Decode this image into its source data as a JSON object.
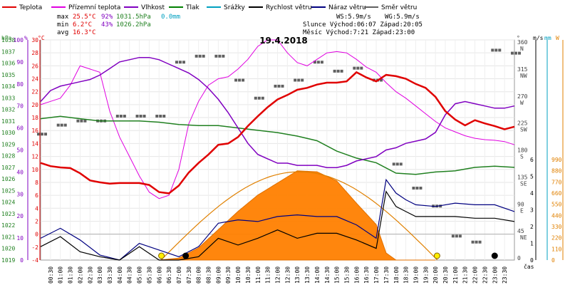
{
  "chart_data": {
    "type": "line",
    "title": "19.4.2018",
    "legend": [
      {
        "name": "Teplota",
        "color": "#e00000"
      },
      {
        "name": "Přízemní teplota",
        "color": "#e000e0"
      },
      {
        "name": "Vlhkost",
        "color": "#8000c0"
      },
      {
        "name": "Tlak",
        "color": "#008000"
      },
      {
        "name": "Srážky",
        "color": "#00a0c0"
      },
      {
        "name": "Rychlost větru",
        "color": "#000000"
      },
      {
        "name": "Náraz větru",
        "color": "#000080"
      },
      {
        "name": "Směr větru",
        "color": "#606060"
      }
    ],
    "stats": {
      "max": {
        "label": "max",
        "temp": "25.5°C",
        "hum": "92%",
        "press": "1031.5hPa",
        "rain": "0.0mm"
      },
      "min": {
        "label": "min",
        "temp": "6.2°C",
        "hum": "43%",
        "press": "1026.2hPa"
      },
      "avg": {
        "label": "avg",
        "temp": "16.3°C"
      },
      "ws": "WS:5.9m/s",
      "wg": "WG:5.9m/s",
      "sun": "Slunce Východ:06:07  Západ:20:05",
      "moon": "Měsíc  Východ:7:21  Západ:23:00"
    },
    "axis_units": {
      "hpa": "hPa",
      "pct": "%",
      "degc": "°C",
      "deg": "°",
      "ms": "m/s",
      "mm": "mm",
      "w": "W",
      "cas": "čas"
    },
    "y_ticks": {
      "hpa": [
        "1038",
        "1037",
        "1036",
        "1035",
        "1034",
        "1033",
        "1032",
        "1031",
        "1030",
        "1029",
        "1028",
        "1027",
        "1026",
        "1025",
        "1024",
        "1023",
        "1022",
        "1021",
        "1020",
        "1019"
      ],
      "pct": [
        "100",
        "90",
        "80",
        "70",
        "60",
        "50",
        "40",
        "30",
        "20",
        "10",
        "0"
      ],
      "temp": [
        "30",
        "28",
        "26",
        "24",
        "22",
        "20",
        "18",
        "16",
        "14",
        "12",
        "10",
        "8",
        "6",
        "4",
        "2",
        "0",
        "-2",
        "-4"
      ],
      "dir": [
        "360 N",
        "315 NW",
        "270 W",
        "225 SW",
        "180 S",
        "135 SE",
        "90 E",
        "45 NE",
        "0"
      ],
      "ms": [
        "6",
        "5",
        "4",
        "3",
        "2",
        "1",
        "0"
      ],
      "w": [
        "990",
        "880",
        "770",
        "660",
        "550",
        "440",
        "330",
        "220",
        "110",
        "0"
      ]
    },
    "x_ticks": [
      "00:30",
      "01:00",
      "01:30",
      "02:00",
      "02:30",
      "03:00",
      "03:30",
      "04:00",
      "04:30",
      "05:00",
      "05:30",
      "06:00",
      "06:30",
      "07:00",
      "07:30",
      "08:00",
      "08:30",
      "09:00",
      "09:30",
      "10:00",
      "10:30",
      "11:00",
      "11:30",
      "12:00",
      "12:30",
      "13:00",
      "13:30",
      "14:00",
      "14:30",
      "15:00",
      "15:30",
      "16:00",
      "16:30",
      "17:00",
      "17:30",
      "18:00",
      "18:30",
      "19:00",
      "19:30",
      "20:00",
      "20:30",
      "21:00",
      "21:30",
      "22:00",
      "22:30",
      "23:00",
      "23:30"
    ],
    "series": [
      {
        "name": "Teplota",
        "x": [
          0,
          0.5,
          1,
          1.5,
          2,
          2.5,
          3,
          3.5,
          4,
          4.5,
          5,
          5.5,
          6,
          6.5,
          7,
          7.5,
          8,
          8.5,
          9,
          9.5,
          10,
          10.5,
          11,
          11.5,
          12,
          12.5,
          13,
          13.5,
          14,
          14.5,
          15,
          15.5,
          16,
          16.5,
          17,
          17.5,
          18,
          18.5,
          19,
          19.5,
          20,
          20.5,
          21,
          21.5,
          22,
          22.5,
          23,
          23.5,
          24
        ],
        "values": [
          11,
          10.5,
          10.3,
          10.2,
          9.4,
          8.3,
          8,
          7.8,
          7.9,
          7.9,
          7.9,
          7.6,
          6.5,
          6.3,
          7.5,
          9.5,
          11,
          12.3,
          13.8,
          14,
          15,
          16.7,
          18.2,
          19.6,
          20.8,
          21.5,
          22.3,
          22.6,
          23.1,
          23.4,
          23.4,
          23.6,
          25,
          24.2,
          23.6,
          24.6,
          24.4,
          24,
          23.2,
          22.6,
          21.2,
          19,
          17.7,
          16.8,
          17.6,
          17.1,
          16.7,
          16.2,
          16.6
        ]
      },
      {
        "name": "Přízemní teplota",
        "x": [
          0,
          0.5,
          1,
          1.5,
          2,
          2.5,
          3,
          3.5,
          4,
          4.5,
          5,
          5.5,
          6,
          6.5,
          7,
          7.5,
          8,
          8.5,
          9,
          9.5,
          10,
          10.5,
          11,
          11.5,
          12,
          12.5,
          13,
          13.5,
          14,
          14.5,
          15,
          15.5,
          16,
          16.5,
          17,
          17.5,
          18,
          18.5,
          19,
          19.5,
          20,
          20.5,
          21,
          21.5,
          22,
          22.5,
          23,
          23.5,
          24
        ],
        "values": [
          20,
          20.5,
          21,
          23,
          26,
          25.5,
          25,
          19,
          15,
          12,
          9,
          6.5,
          5.5,
          6,
          10,
          17,
          20.5,
          23,
          24,
          24.3,
          25.5,
          27,
          29,
          30,
          30,
          28,
          26.5,
          26,
          27,
          28,
          28.2,
          28,
          27,
          25.8,
          25,
          23.4,
          22,
          21,
          19.8,
          18.6,
          17.4,
          16.4,
          15.8,
          15.2,
          14.8,
          14.6,
          14.5,
          14.3,
          13.8
        ]
      },
      {
        "name": "Vlhkost",
        "x": [
          0,
          0.5,
          1,
          1.5,
          2,
          2.5,
          3,
          3.5,
          4,
          4.5,
          5,
          5.5,
          6,
          6.5,
          7,
          7.5,
          8,
          8.5,
          9,
          9.5,
          10,
          10.5,
          11,
          11.5,
          12,
          12.5,
          13,
          13.5,
          14,
          14.5,
          15,
          15.5,
          16,
          16.5,
          17,
          17.5,
          18,
          18.5,
          19,
          19.5,
          20,
          20.5,
          21,
          21.5,
          22,
          22.5,
          23,
          23.5,
          24
        ],
        "values": [
          72,
          77,
          79,
          80,
          81,
          82,
          84,
          87,
          90,
          91,
          92,
          92,
          91,
          89,
          87,
          85,
          82,
          78,
          73,
          67,
          60,
          53,
          48,
          46,
          44,
          44,
          43,
          43,
          43,
          42,
          42,
          43,
          45,
          46,
          47,
          50,
          51,
          53,
          54,
          55,
          58,
          66,
          71,
          72,
          71,
          70,
          69,
          69,
          70
        ]
      },
      {
        "name": "Tlak",
        "x": [
          0,
          1,
          2,
          3,
          4,
          5,
          6,
          7,
          8,
          9,
          10,
          11,
          12,
          13,
          14,
          15,
          16,
          17,
          18,
          19,
          20,
          21,
          22,
          23,
          24
        ],
        "values": [
          1031.2,
          1031.4,
          1031.2,
          1031.0,
          1031.0,
          1031.0,
          1030.9,
          1030.7,
          1030.6,
          1030.6,
          1030.4,
          1030.2,
          1030.0,
          1029.7,
          1029.3,
          1028.4,
          1027.8,
          1027.4,
          1026.5,
          1026.4,
          1026.6,
          1026.7,
          1027.0,
          1027.1,
          1027.0
        ]
      },
      {
        "name": "Rychlost větru",
        "x": [
          0,
          1,
          2,
          3,
          4,
          5,
          6,
          7,
          8,
          9,
          10,
          11,
          12,
          13,
          14,
          15,
          16,
          17,
          17.5,
          18,
          18.5,
          19,
          20,
          21,
          22,
          23,
          24
        ],
        "values": [
          0.8,
          1.4,
          0.5,
          0.2,
          0,
          0.8,
          0,
          0,
          0.2,
          1.3,
          0.9,
          1.3,
          1.8,
          1.3,
          1.6,
          1.6,
          1.2,
          0.7,
          4.1,
          3.2,
          2.9,
          2.6,
          2.6,
          2.6,
          2.5,
          2.5,
          2.3
        ]
      },
      {
        "name": "Náraz větru",
        "x": [
          0,
          1,
          2,
          3,
          4,
          5,
          6,
          7,
          8,
          9,
          10,
          11,
          12,
          13,
          14,
          15,
          16,
          17,
          17.5,
          18,
          18.5,
          19,
          20,
          21,
          22,
          23,
          24
        ],
        "values": [
          1.3,
          1.9,
          1.2,
          0.3,
          0,
          1,
          0.6,
          0.2,
          0.8,
          2.2,
          2.4,
          2.3,
          2.6,
          2.7,
          2.6,
          2.6,
          2.1,
          1.3,
          4.8,
          4,
          3.6,
          3.3,
          3.2,
          3.4,
          3.3,
          3.3,
          2.9
        ]
      },
      {
        "name": "Sluneční záření",
        "x": [
          6,
          7,
          8,
          9,
          10,
          11,
          12,
          13,
          14,
          15,
          16,
          17,
          17.5,
          18,
          19,
          20
        ],
        "values": [
          0,
          20,
          120,
          300,
          480,
          640,
          760,
          880,
          870,
          780,
          560,
          350,
          70,
          0,
          0,
          0
        ]
      },
      {
        "name": "Směr větru",
        "x": [
          0,
          1,
          2,
          3,
          4,
          5,
          6,
          7,
          8,
          9,
          10,
          11,
          12,
          13,
          14,
          15,
          16,
          17,
          18,
          19,
          20,
          21,
          22,
          23,
          24
        ],
        "values": [
          210,
          225,
          232,
          232,
          240,
          240,
          240,
          330,
          340,
          340,
          300,
          270,
          290,
          300,
          330,
          315,
          320,
          300,
          160,
          120,
          90,
          40,
          30,
          350,
          345
        ]
      }
    ],
    "xlim": [
      0,
      24
    ]
  }
}
